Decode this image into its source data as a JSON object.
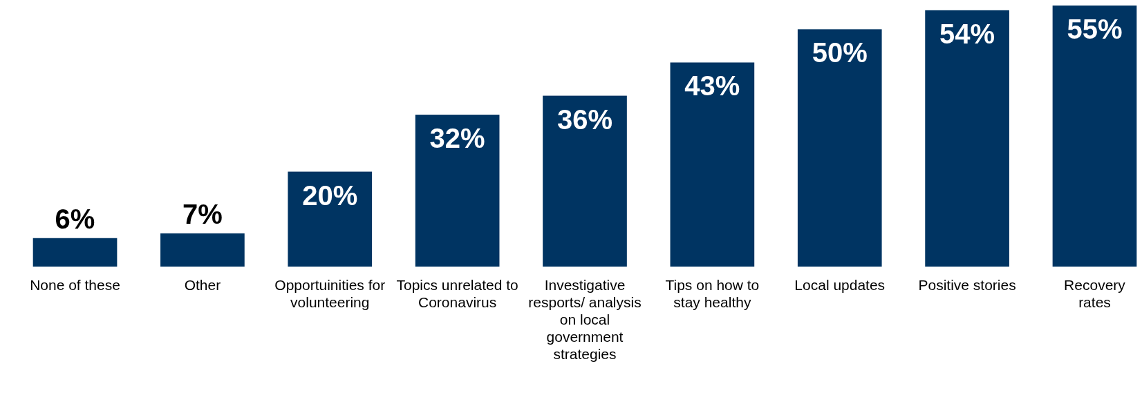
{
  "chart_data": {
    "type": "bar",
    "categories": [
      "None of these",
      "Other",
      "Opportuinities for volunteering",
      "Topics unrelated to Coronavirus",
      "Investigative resports/ analysis on local government strategies",
      "Tips on how to stay healthy",
      "Local updates",
      "Positive stories",
      "Recovery rates"
    ],
    "values": [
      6,
      7,
      20,
      32,
      36,
      43,
      50,
      54,
      55
    ],
    "value_labels": [
      "6%",
      "7%",
      "20%",
      "32%",
      "36%",
      "43%",
      "50%",
      "54%",
      "55%"
    ],
    "color": "#003462"
  }
}
